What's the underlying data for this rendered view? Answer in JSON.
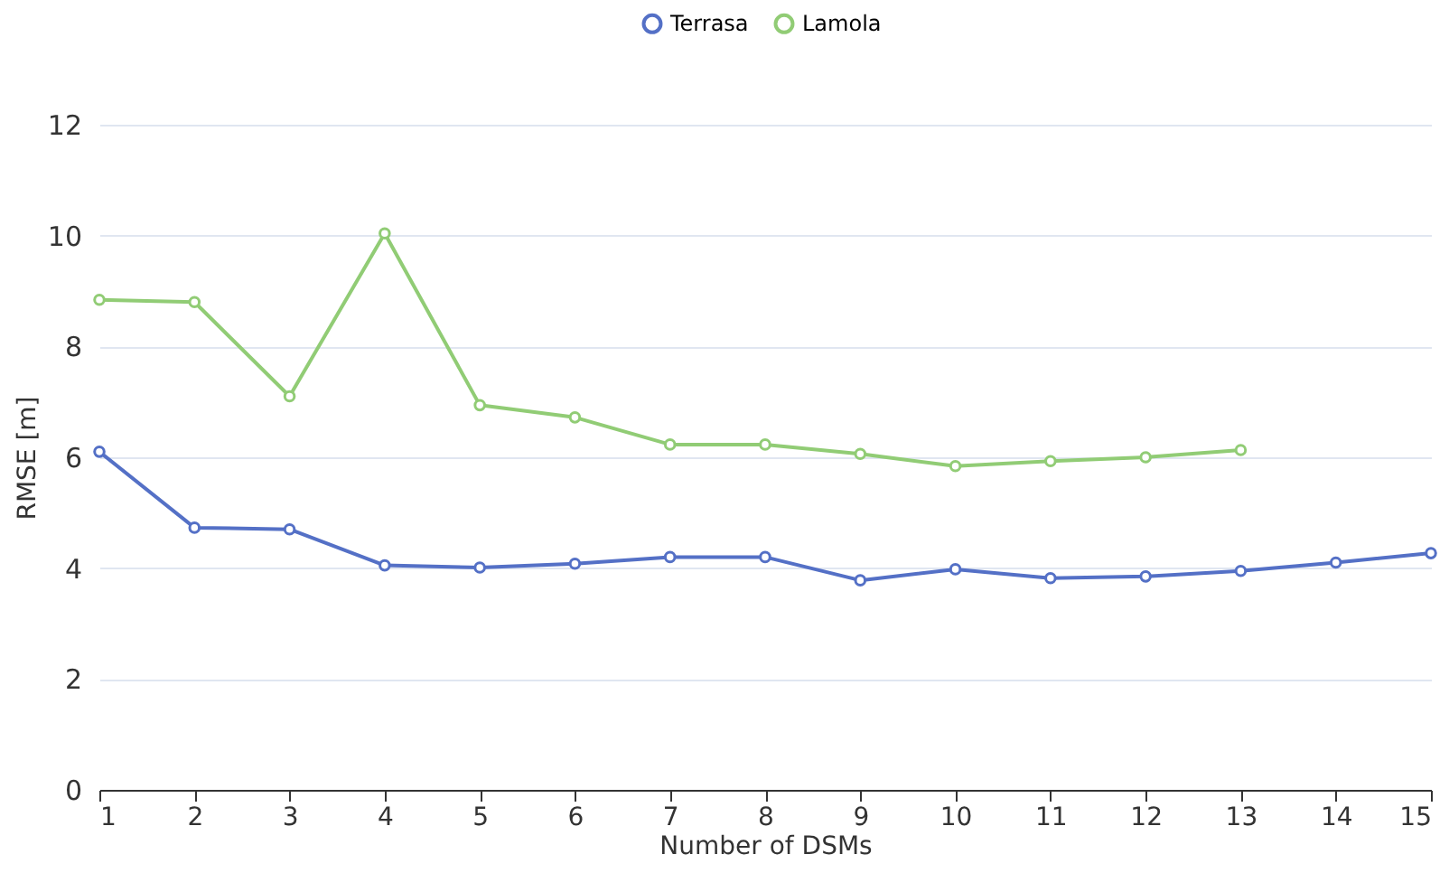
{
  "chart_data": {
    "type": "line",
    "xlabel": "Number of DSMs",
    "ylabel": "RMSE [m]",
    "x": [
      1,
      2,
      3,
      4,
      5,
      6,
      7,
      8,
      9,
      10,
      11,
      12,
      13,
      14,
      15
    ],
    "series": [
      {
        "name": "Terrasa",
        "color": "#5470c6",
        "values": [
          6.1,
          4.73,
          4.7,
          4.05,
          4.01,
          4.08,
          4.2,
          4.2,
          3.78,
          3.98,
          3.82,
          3.85,
          3.95,
          4.1,
          4.27
        ]
      },
      {
        "name": "Lamola",
        "color": "#91cc75",
        "values": [
          8.84,
          8.8,
          7.1,
          10.04,
          6.94,
          6.72,
          6.23,
          6.23,
          6.06,
          5.84,
          5.93,
          6.0,
          6.13,
          null,
          null
        ]
      }
    ],
    "xlim": [
      1,
      15
    ],
    "xticks": [
      1,
      2,
      3,
      4,
      5,
      6,
      7,
      8,
      9,
      10,
      11,
      12,
      13,
      14,
      15
    ],
    "ylim": [
      0,
      12
    ],
    "yticks": [
      0,
      2,
      4,
      6,
      8,
      10,
      12
    ],
    "grid": "y",
    "legend": "top",
    "marker": "circle",
    "line_style": "solid"
  }
}
